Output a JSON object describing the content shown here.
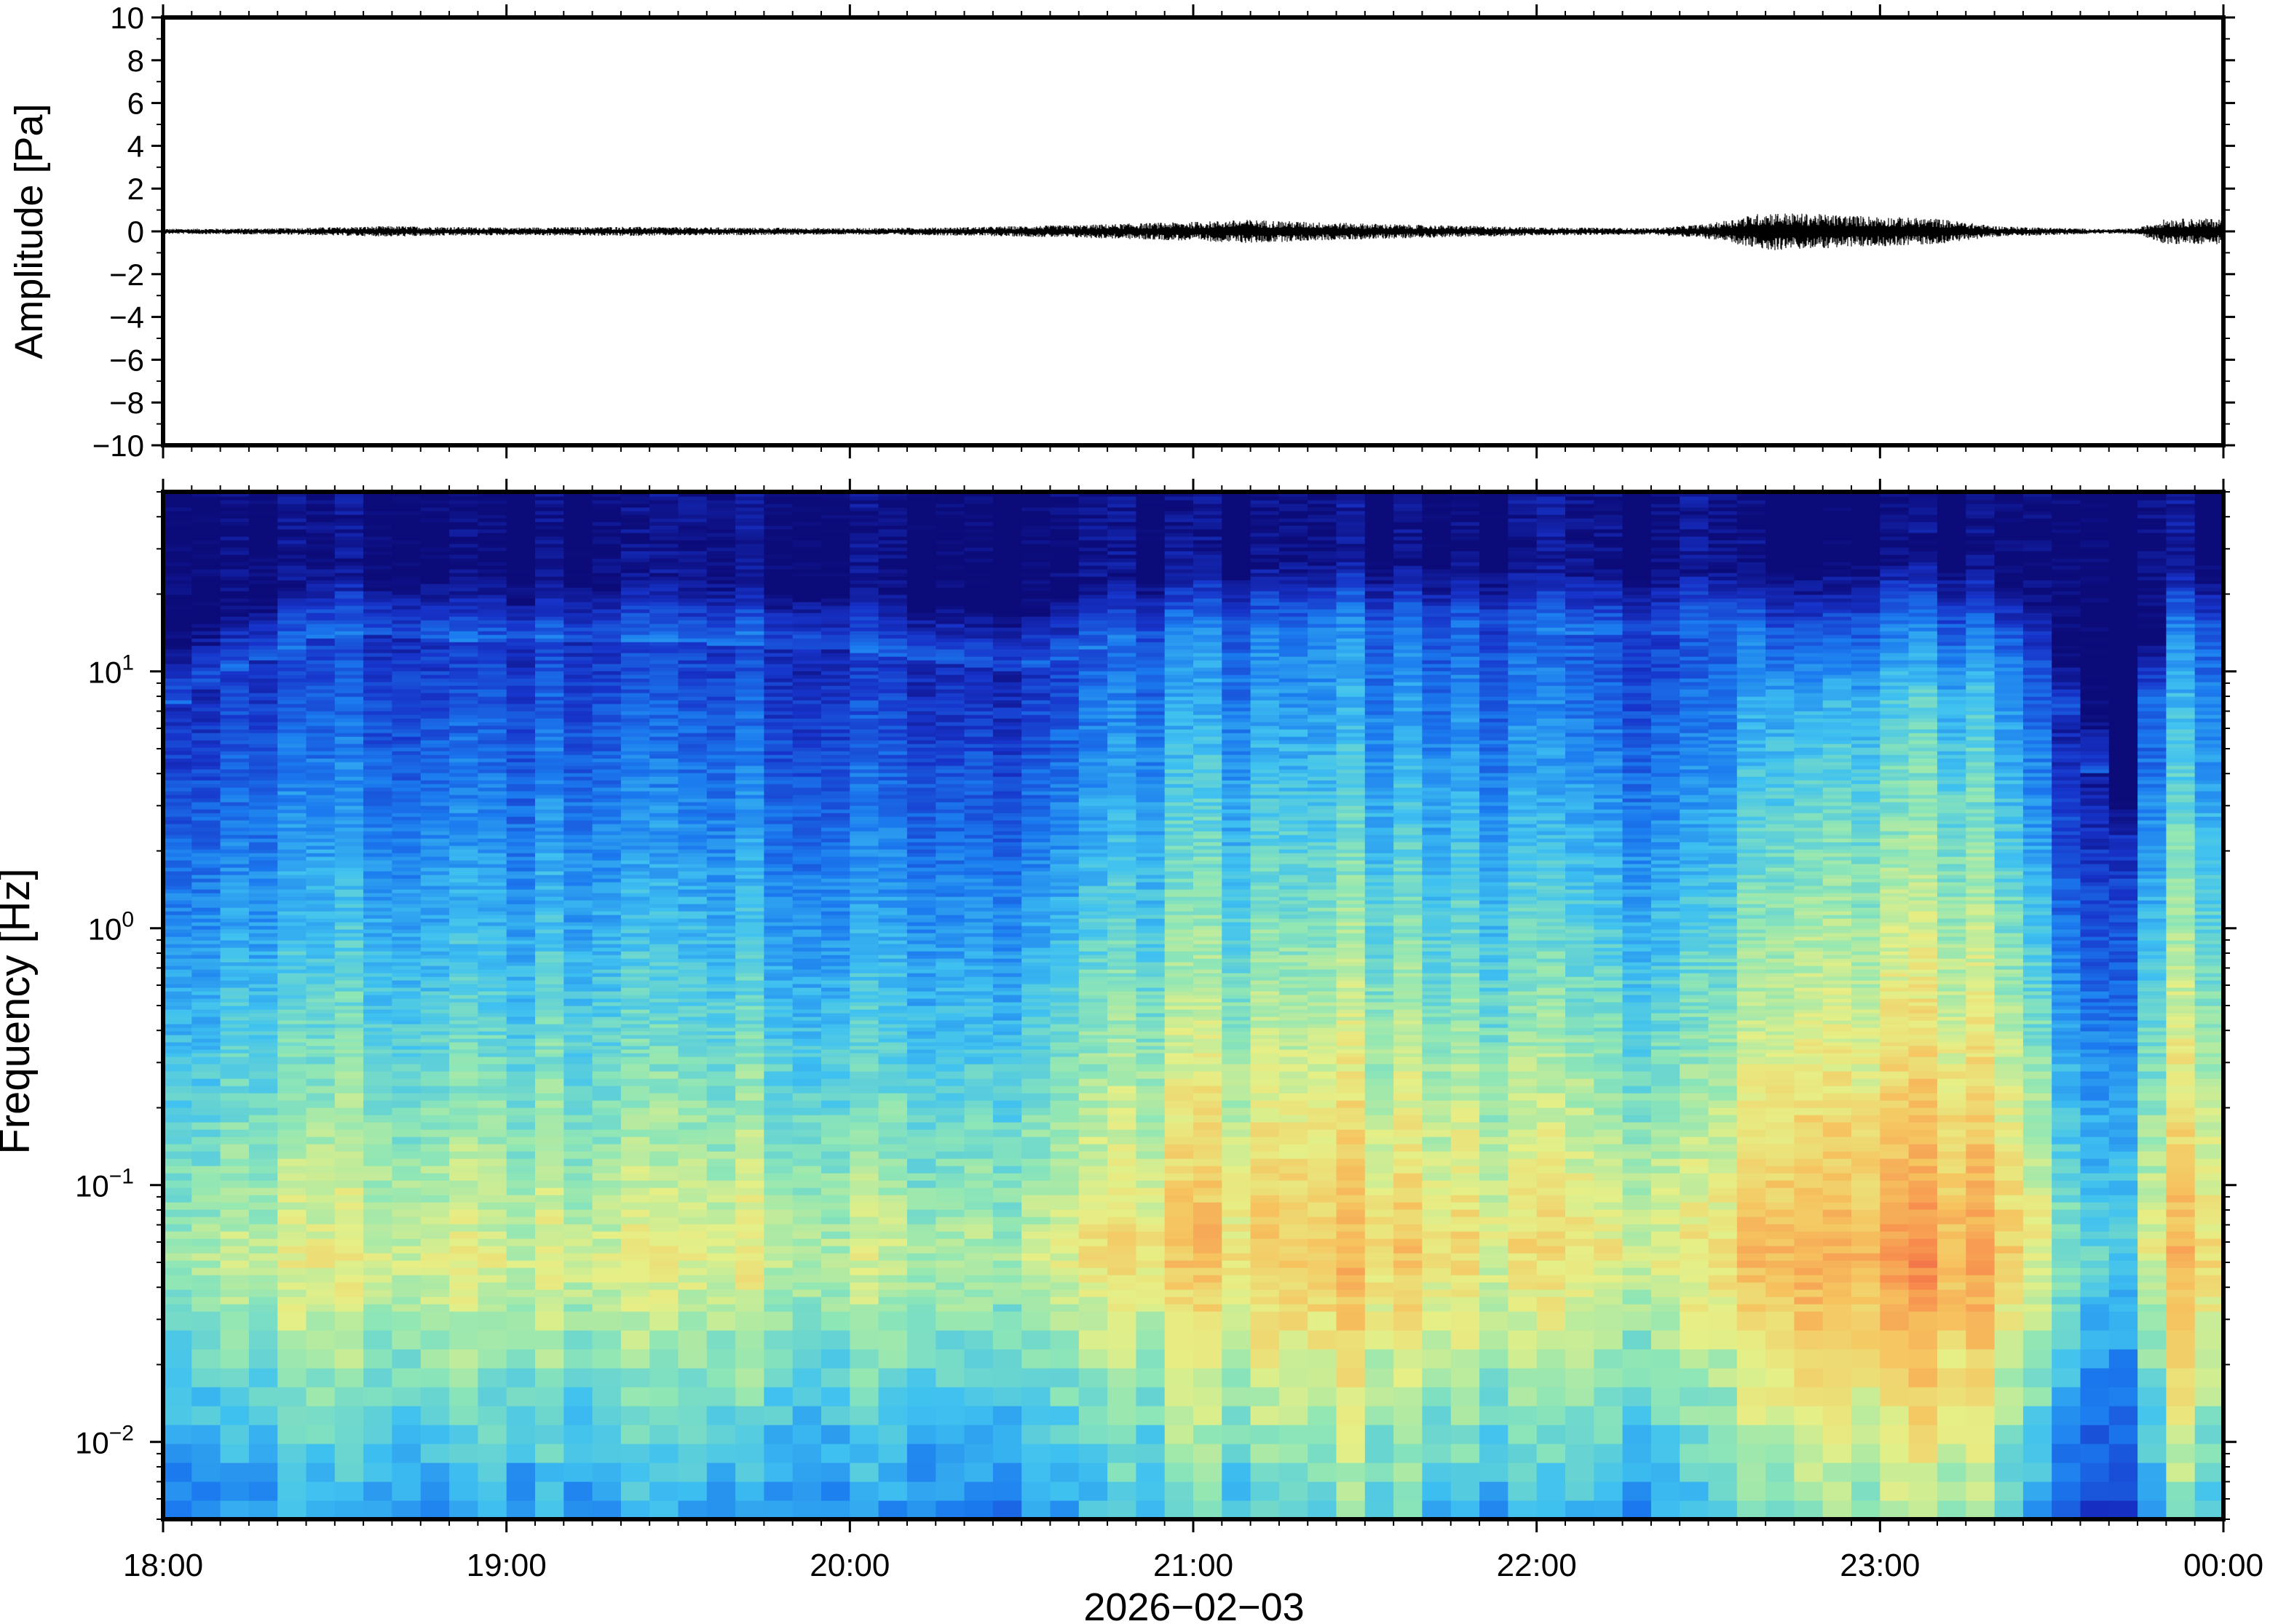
{
  "chart_data": [
    {
      "type": "line",
      "ylabel": "Amplitude [Pa]",
      "ylim": [
        -10,
        10
      ],
      "yticks": [
        10,
        8,
        6,
        4,
        2,
        0,
        -2,
        -4,
        -6,
        -8,
        -10
      ],
      "ytick_labels": [
        "10",
        "8",
        "6",
        "4",
        "2",
        "0",
        "−2",
        "−4",
        "−6",
        "−8",
        "−10"
      ],
      "grid": false,
      "series": [
        {
          "color": "#000000",
          "envelope_x": [
            "18:00",
            "18:20",
            "18:40",
            "19:00",
            "19:20",
            "19:40",
            "20:00",
            "20:20",
            "20:40",
            "21:00",
            "21:10",
            "21:20",
            "21:40",
            "22:00",
            "22:20",
            "22:30",
            "22:40",
            "22:50",
            "23:00",
            "23:10",
            "23:20",
            "23:40",
            "23:45",
            "23:50",
            "24:00"
          ],
          "envelope_amplitude_pa": [
            0.12,
            0.15,
            0.25,
            0.18,
            0.22,
            0.18,
            0.15,
            0.2,
            0.3,
            0.45,
            0.55,
            0.45,
            0.3,
            0.2,
            0.15,
            0.35,
            0.9,
            0.8,
            0.7,
            0.6,
            0.25,
            0.1,
            0.15,
            0.6,
            0.6
          ]
        }
      ]
    },
    {
      "type": "heatmap",
      "ylabel": "Frequency [Hz]",
      "xlabel": "2026−02−03",
      "yscale": "log",
      "ylim": [
        0.005,
        50
      ],
      "yticks": [
        10,
        1,
        0.1,
        0.01
      ],
      "ytick_labels": [
        {
          "base": "10",
          "exp": "1"
        },
        {
          "base": "10",
          "exp": "0"
        },
        {
          "base": "10",
          "exp": "−1"
        },
        {
          "base": "10",
          "exp": "−2"
        }
      ],
      "xlim": [
        "18:00",
        "00:00"
      ],
      "xtick_labels": [
        "18:00",
        "19:00",
        "20:00",
        "21:00",
        "22:00",
        "23:00",
        "00:00"
      ],
      "colormap": [
        "#0c0b7a",
        "#1733c9",
        "#1b7bef",
        "#3fc1f0",
        "#8ee6b6",
        "#e6ef86",
        "#f6c35f",
        "#f7874b",
        "#e4464a"
      ],
      "power_by_time_window": {
        "x": [
          "18:00",
          "18:30",
          "19:00",
          "19:30",
          "20:00",
          "20:30",
          "21:00",
          "21:30",
          "22:00",
          "22:30",
          "22:45",
          "23:00",
          "23:15",
          "23:25",
          "23:35",
          "23:45",
          "23:50",
          "24:00"
        ],
        "upper_edge_hz": [
          7,
          14,
          13,
          13,
          12,
          10,
          15,
          16,
          14,
          14,
          15,
          16,
          16,
          12,
          5,
          0.9,
          14,
          16
        ],
        "peak_hz": [
          0.05,
          0.05,
          0.05,
          0.05,
          0.05,
          0.05,
          0.06,
          0.05,
          0.06,
          0.05,
          0.05,
          0.05,
          0.05,
          0.06,
          0.05,
          0.06,
          0.05,
          0.05
        ],
        "peak_level": [
          0.55,
          0.62,
          0.62,
          0.6,
          0.58,
          0.58,
          0.72,
          0.74,
          0.64,
          0.62,
          0.86,
          0.82,
          0.84,
          0.7,
          0.45,
          0.48,
          0.74,
          0.74
        ]
      }
    }
  ]
}
